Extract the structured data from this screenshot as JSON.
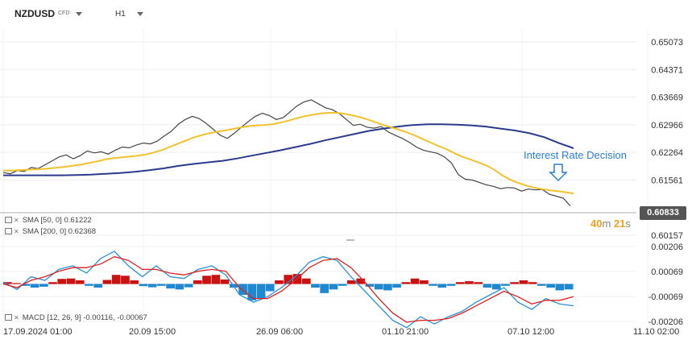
{
  "header": {
    "symbol": "NZDUSD",
    "instrument_type": "CFD",
    "timeframe": "H1"
  },
  "indicators": {
    "sma50": "SMA [50,  0]  0.61222",
    "sma200": "SMA [200,  0]  0.62368",
    "macd": "MACD [12,  26,  9]  -0.00116,  -0.00067"
  },
  "current_price": "0.60833",
  "countdown": {
    "minutes": "40",
    "minutes_unit": "m",
    "seconds": "21",
    "seconds_unit": "s"
  },
  "annotation": "Interest Rate Decision",
  "colors": {
    "candles": "#444444",
    "sma50": "#f2c12e",
    "sma200": "#2b3a8c",
    "macd_pos": "#cc1111",
    "macd_neg": "#1e88d0",
    "macd_line": "#2a8fd8",
    "signal_line": "#e02020",
    "annotation": "#2a7fd4"
  },
  "chart_data": [
    {
      "type": "line",
      "title": "",
      "y_ticks": [
        "0.65073",
        "0.64371",
        "0.63669",
        "0.62966",
        "0.62264",
        "0.61561",
        "0.60833",
        "0.60157"
      ],
      "ylim": [
        0.60157,
        0.65073
      ],
      "x_ticks": [
        "17.09.2024  01:00",
        "20.09  15:00",
        "26.09  06:00",
        "01.10  21:00",
        "07.10  12:00",
        "11.10  02:00"
      ],
      "series": [
        {
          "name": "NZDUSD",
          "values": [
            0.6175,
            0.6172,
            0.618,
            0.6178,
            0.6188,
            0.6185,
            0.6195,
            0.6205,
            0.6215,
            0.622,
            0.621,
            0.6218,
            0.623,
            0.6225,
            0.6228,
            0.6222,
            0.6232,
            0.624,
            0.6238,
            0.6245,
            0.625,
            0.6248,
            0.6255,
            0.6268,
            0.628,
            0.6298,
            0.631,
            0.6318,
            0.6312,
            0.63,
            0.6285,
            0.627,
            0.6262,
            0.6275,
            0.629,
            0.6305,
            0.6318,
            0.6326,
            0.632,
            0.631,
            0.6315,
            0.633,
            0.6345,
            0.6355,
            0.636,
            0.635,
            0.634,
            0.6335,
            0.6325,
            0.631,
            0.6295,
            0.6298,
            0.629,
            0.6288,
            0.6292,
            0.6278,
            0.627,
            0.6262,
            0.6252,
            0.624,
            0.6232,
            0.6228,
            0.6224,
            0.6215,
            0.62,
            0.617,
            0.6158,
            0.6156,
            0.615,
            0.6144,
            0.614,
            0.6134,
            0.6137,
            0.6136,
            0.6128,
            0.6133,
            0.6131,
            0.6132,
            0.612,
            0.6115,
            0.611,
            0.609
          ]
        },
        {
          "name": "SMA [50, 0]",
          "values": [
            0.618,
            0.618,
            0.6181,
            0.6182,
            0.6183,
            0.6184,
            0.6186,
            0.6188,
            0.619,
            0.6193,
            0.6196,
            0.62,
            0.6204,
            0.6209,
            0.6212,
            0.6214,
            0.6216,
            0.6218,
            0.6221,
            0.6226,
            0.6232,
            0.624,
            0.6248,
            0.6256,
            0.6264,
            0.627,
            0.6275,
            0.6279,
            0.6282,
            0.6286,
            0.629,
            0.6293,
            0.6295,
            0.6296,
            0.6298,
            0.6302,
            0.6307,
            0.6313,
            0.6318,
            0.6322,
            0.6325,
            0.6327,
            0.6327,
            0.6325,
            0.6321,
            0.6316,
            0.631,
            0.6303,
            0.6296,
            0.629,
            0.6284,
            0.6277,
            0.6269,
            0.626,
            0.6251,
            0.6242,
            0.6234,
            0.6224,
            0.6215,
            0.6208,
            0.6201,
            0.6193,
            0.6182,
            0.6168,
            0.6157,
            0.6149,
            0.6142,
            0.6137,
            0.6133,
            0.613,
            0.6128,
            0.6125,
            0.6122
          ]
        },
        {
          "name": "SMA [200, 0]",
          "values": [
            0.6168,
            0.6168,
            0.6168,
            0.6168,
            0.6168,
            0.6169,
            0.617,
            0.6172,
            0.6174,
            0.6177,
            0.6181,
            0.6186,
            0.6192,
            0.6197,
            0.6201,
            0.6205,
            0.6211,
            0.6218,
            0.6225,
            0.6232,
            0.624,
            0.6248,
            0.6257,
            0.6265,
            0.6273,
            0.6281,
            0.6287,
            0.6292,
            0.6296,
            0.6298,
            0.6298,
            0.6297,
            0.6295,
            0.6292,
            0.6287,
            0.6282,
            0.6275,
            0.6265,
            0.625,
            0.6237
          ]
        }
      ]
    },
    {
      "type": "bar",
      "title": "MACD [12, 26, 9]",
      "y_ticks": [
        "0.00206",
        "0.00069",
        "-0.00069",
        "-0.00206"
      ],
      "ylim": [
        -0.00206,
        0.00206
      ],
      "histogram": [
        0.0001,
        5e-05,
        -0.0001,
        -0.0002,
        -0.00015,
        0.0001,
        0.00028,
        0.0003,
        0.0002,
        -0.0001,
        -0.0002,
        0.00022,
        0.0005,
        0.00045,
        0.0002,
        -0.00012,
        -0.00018,
        -0.0001,
        -0.00025,
        -0.0003,
        -0.00018,
        0.0002,
        0.00045,
        0.0005,
        0.00025,
        -0.0002,
        -0.0006,
        -0.0009,
        -0.0008,
        -0.0004,
        0.0002,
        0.0005,
        0.00055,
        0.0003,
        -0.0002,
        -0.0005,
        -0.0003,
        -0.0001,
        0.0002,
        0.0003,
        -0.00015,
        -0.0003,
        -0.00035,
        -0.0002,
        0.0001,
        0.0003,
        0.0002,
        -0.0001,
        -0.0002,
        -0.0001,
        0.0001,
        0.00015,
        0.0001,
        -0.0002,
        -0.0003,
        -0.0001,
        0.0001,
        0.0002,
        0.0001,
        -0.0001,
        -0.0002,
        -0.00035,
        -0.0003
      ],
      "series": [
        {
          "name": "MACD",
          "values": [
            0.0001,
            -0.0003,
            0.0004,
            0.0002,
            0.0008,
            0.001,
            0.0006,
            0.0014,
            0.0018,
            0.001,
            0.0004,
            0.001,
            0.0004,
            0.0003,
            0.0008,
            0.001,
            0.0005,
            -0.0006,
            -0.001,
            -0.0007,
            -0.0002,
            0.0004,
            0.0012,
            0.0015,
            0.0013,
            0.0004,
            -0.0004,
            -0.0012,
            -0.002,
            -0.0024,
            -0.0018,
            -0.0022,
            -0.0018,
            -0.0015,
            -0.001,
            -0.0006,
            -0.0002,
            -0.001,
            -0.0014,
            -0.0008,
            -0.0011,
            -0.0012
          ]
        },
        {
          "name": "Signal",
          "values": [
            0.0,
            -0.0002,
            0.0002,
            0.0004,
            0.0007,
            0.0009,
            0.0009,
            0.0011,
            0.0015,
            0.0013,
            0.0008,
            0.0008,
            0.0006,
            0.0005,
            0.0007,
            0.0008,
            0.0007,
            -0.0002,
            -0.0008,
            -0.0008,
            -0.0004,
            0.0002,
            0.0009,
            0.0013,
            0.0014,
            0.0009,
            0.0001,
            -0.0008,
            -0.0016,
            -0.0021,
            -0.002,
            -0.002,
            -0.0019,
            -0.0016,
            -0.0012,
            -0.0008,
            -0.0004,
            -0.0007,
            -0.0011,
            -0.0009,
            -0.0009,
            -0.0007
          ]
        }
      ]
    }
  ]
}
